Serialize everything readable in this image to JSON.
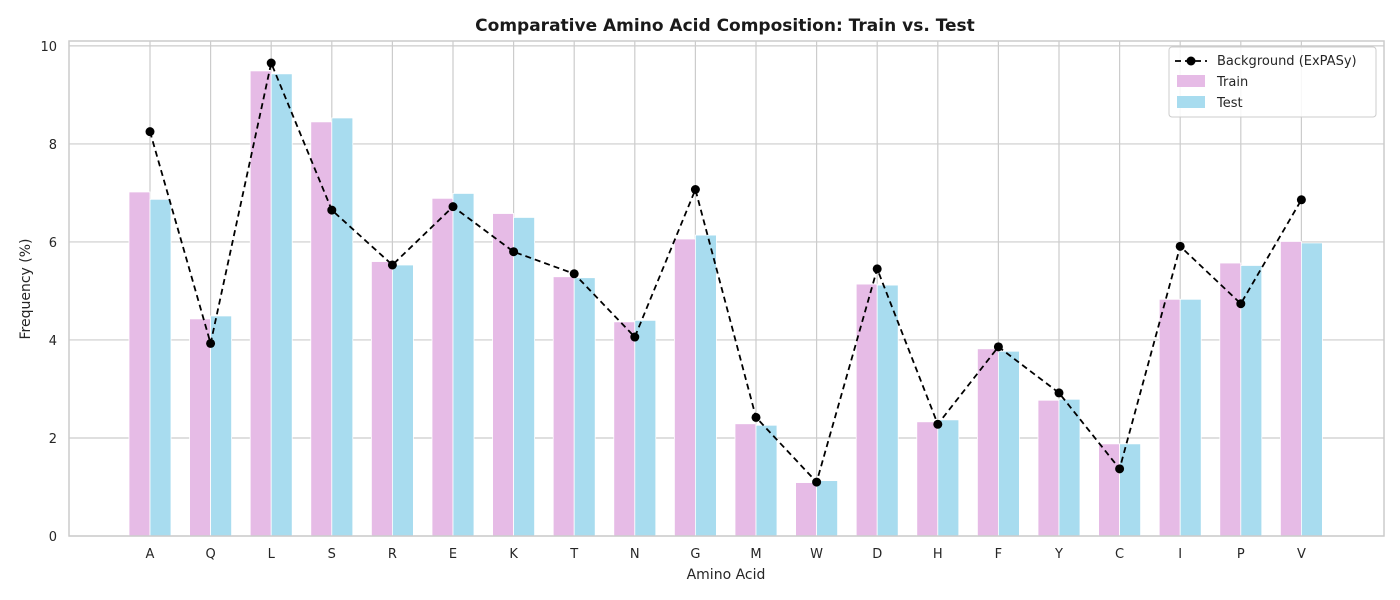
{
  "chart_data": {
    "type": "bar",
    "title": "Comparative Amino Acid Composition: Train vs. Test",
    "xlabel": "Amino Acid",
    "ylabel": "Frequency (%)",
    "ylim": [
      0,
      10.1
    ],
    "yticks": [
      0,
      2,
      4,
      6,
      8,
      10
    ],
    "grid": true,
    "legend_position": "top-right",
    "categories": [
      "A",
      "Q",
      "L",
      "S",
      "R",
      "E",
      "K",
      "T",
      "N",
      "G",
      "M",
      "W",
      "D",
      "H",
      "F",
      "Y",
      "C",
      "I",
      "P",
      "V"
    ],
    "series": [
      {
        "name": "Train",
        "kind": "bar",
        "color": "#e6bbe6",
        "values": [
          7.02,
          4.43,
          9.49,
          8.45,
          5.6,
          6.89,
          6.58,
          5.29,
          4.37,
          6.06,
          2.29,
          1.09,
          5.14,
          2.33,
          3.82,
          2.77,
          1.88,
          4.83,
          5.57,
          6.01
        ]
      },
      {
        "name": "Test",
        "kind": "bar",
        "color": "#a8dcef",
        "values": [
          6.87,
          4.49,
          9.43,
          8.53,
          5.53,
          6.99,
          6.5,
          5.27,
          4.4,
          6.14,
          2.26,
          1.13,
          5.12,
          2.37,
          3.77,
          2.79,
          1.88,
          4.83,
          5.52,
          5.98
        ]
      },
      {
        "name": "Background (ExPASy)",
        "kind": "line",
        "color": "#000000",
        "values": [
          8.25,
          3.93,
          9.65,
          6.65,
          5.53,
          6.72,
          5.8,
          5.35,
          4.06,
          7.07,
          2.42,
          1.1,
          5.45,
          2.28,
          3.86,
          2.92,
          1.37,
          5.91,
          4.74,
          6.86
        ]
      }
    ]
  }
}
